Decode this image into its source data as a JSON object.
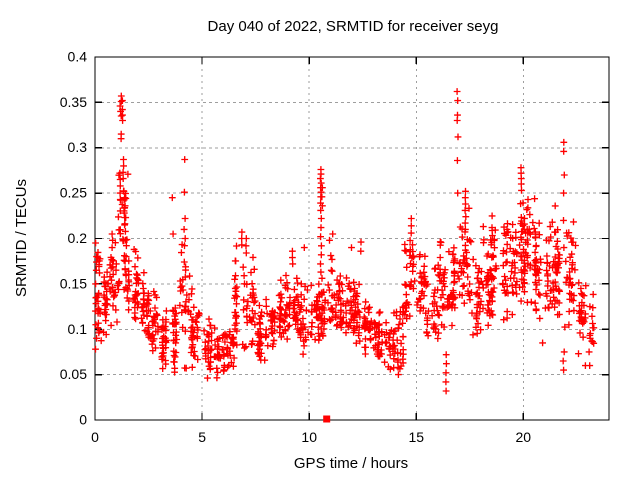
{
  "title": "Day 040 of 2022, SRMTID for receiver seyg",
  "x_axis": {
    "label": "GPS time / hours",
    "ticks": [
      "0",
      "5",
      "10",
      "15",
      "20"
    ],
    "tick_values": [
      0,
      5,
      10,
      15,
      20
    ]
  },
  "y_axis": {
    "label": "SRMTID / TECUs",
    "ticks": [
      "0",
      "0.05",
      "0.1",
      "0.15",
      "0.2",
      "0.25",
      "0.3",
      "0.35",
      "0.4"
    ],
    "tick_values": [
      0,
      0.05,
      0.1,
      0.15,
      0.2,
      0.25,
      0.3,
      0.35,
      0.4
    ]
  },
  "colors": {
    "marker": "#ff0000",
    "grid": "#9e9e9e",
    "axis": "#000000",
    "background": "#ffffff",
    "text": "#000000"
  },
  "chart_data": {
    "type": "scatter",
    "title": "Day 040 of 2022, SRMTID for receiver seyg",
    "xlabel": "GPS time / hours",
    "ylabel": "SRMTID / TECUs",
    "xlim": [
      0,
      24
    ],
    "ylim": [
      0,
      0.4
    ],
    "grid": true,
    "legend": "none",
    "marker": "plus",
    "marker_color": "#ff0000",
    "band_bins": [
      [
        0.0,
        0.3,
        0.075,
        0.2,
        24
      ],
      [
        0.3,
        0.7,
        0.09,
        0.18,
        26
      ],
      [
        0.7,
        1.0,
        0.1,
        0.21,
        28
      ],
      [
        1.0,
        1.5,
        0.13,
        0.29,
        44
      ],
      [
        1.5,
        2.0,
        0.1,
        0.22,
        36
      ],
      [
        2.0,
        2.5,
        0.085,
        0.165,
        32
      ],
      [
        2.5,
        3.0,
        0.07,
        0.15,
        30
      ],
      [
        3.0,
        3.5,
        0.055,
        0.125,
        30
      ],
      [
        3.5,
        4.0,
        0.05,
        0.15,
        30
      ],
      [
        4.0,
        4.5,
        0.05,
        0.21,
        34
      ],
      [
        4.5,
        5.0,
        0.055,
        0.15,
        30
      ],
      [
        5.0,
        5.5,
        0.045,
        0.12,
        30
      ],
      [
        5.5,
        6.0,
        0.045,
        0.105,
        28
      ],
      [
        6.0,
        6.5,
        0.05,
        0.12,
        28
      ],
      [
        6.5,
        7.0,
        0.07,
        0.2,
        30
      ],
      [
        7.0,
        7.5,
        0.075,
        0.185,
        30
      ],
      [
        7.5,
        8.0,
        0.06,
        0.135,
        30
      ],
      [
        8.0,
        8.5,
        0.07,
        0.145,
        30
      ],
      [
        8.5,
        9.0,
        0.08,
        0.17,
        32
      ],
      [
        9.0,
        9.5,
        0.08,
        0.175,
        30
      ],
      [
        9.5,
        10.0,
        0.07,
        0.16,
        30
      ],
      [
        10.0,
        10.5,
        0.08,
        0.17,
        32
      ],
      [
        10.5,
        11.0,
        0.085,
        0.17,
        30
      ],
      [
        11.0,
        11.5,
        0.09,
        0.19,
        32
      ],
      [
        11.5,
        12.0,
        0.08,
        0.17,
        34
      ],
      [
        12.0,
        12.5,
        0.08,
        0.165,
        34
      ],
      [
        12.5,
        13.0,
        0.07,
        0.145,
        30
      ],
      [
        13.0,
        13.5,
        0.065,
        0.135,
        30
      ],
      [
        13.5,
        14.0,
        0.055,
        0.12,
        28
      ],
      [
        14.0,
        14.5,
        0.05,
        0.135,
        28
      ],
      [
        14.5,
        15.0,
        0.1,
        0.22,
        36
      ],
      [
        15.0,
        15.5,
        0.1,
        0.2,
        32
      ],
      [
        15.5,
        16.0,
        0.08,
        0.18,
        30
      ],
      [
        16.0,
        16.5,
        0.1,
        0.215,
        34
      ],
      [
        16.5,
        17.0,
        0.1,
        0.2,
        30
      ],
      [
        17.0,
        17.5,
        0.11,
        0.245,
        36
      ],
      [
        17.5,
        18.0,
        0.085,
        0.185,
        30
      ],
      [
        18.0,
        18.5,
        0.09,
        0.22,
        34
      ],
      [
        18.5,
        19.0,
        0.1,
        0.24,
        36
      ],
      [
        19.0,
        19.5,
        0.1,
        0.225,
        34
      ],
      [
        19.5,
        20.0,
        0.12,
        0.27,
        40
      ],
      [
        20.0,
        20.5,
        0.12,
        0.26,
        40
      ],
      [
        20.5,
        21.0,
        0.11,
        0.25,
        36
      ],
      [
        21.0,
        21.5,
        0.1,
        0.24,
        34
      ],
      [
        21.5,
        22.0,
        0.09,
        0.25,
        30
      ],
      [
        22.0,
        22.5,
        0.1,
        0.235,
        34
      ],
      [
        22.5,
        23.0,
        0.07,
        0.175,
        28
      ],
      [
        23.0,
        23.3,
        0.05,
        0.15,
        12
      ]
    ],
    "spike_columns": [
      {
        "x": 0.05,
        "ys": [
          0.195,
          0.18,
          0.165,
          0.15,
          0.135,
          0.12,
          0.105,
          0.09,
          0.078
        ]
      },
      {
        "x": 0.8,
        "ys": [
          0.205,
          0.198,
          0.19
        ]
      },
      {
        "x": 1.2,
        "ys": [
          0.357,
          0.351,
          0.346,
          0.34,
          0.335
        ]
      },
      {
        "x": 1.28,
        "ys": [
          0.352,
          0.342,
          0.336,
          0.33
        ]
      },
      {
        "x": 1.24,
        "ys": [
          0.315,
          0.31
        ]
      },
      {
        "x": 1.18,
        "ys": [
          0.272,
          0.265,
          0.258,
          0.25,
          0.243
        ]
      },
      {
        "x": 1.32,
        "ys": [
          0.287,
          0.28,
          0.273,
          0.266
        ]
      },
      {
        "x": 1.38,
        "ys": [
          0.252,
          0.244,
          0.236,
          0.228
        ]
      },
      {
        "x": 3.62,
        "ys": [
          0.245,
          0.205
        ]
      },
      {
        "x": 4.18,
        "ys": [
          0.287,
          0.251,
          0.222,
          0.21,
          0.2
        ]
      },
      {
        "x": 6.85,
        "ys": [
          0.207,
          0.2,
          0.193
        ]
      },
      {
        "x": 7.05,
        "ys": [
          0.2,
          0.192,
          0.184
        ]
      },
      {
        "x": 9.2,
        "ys": [
          0.186,
          0.179,
          0.172
        ]
      },
      {
        "x": 9.75,
        "ys": [
          0.19
        ]
      },
      {
        "x": 10.55,
        "ys": [
          0.276,
          0.271,
          0.266,
          0.261,
          0.256,
          0.251,
          0.246,
          0.239,
          0.231,
          0.222,
          0.212,
          0.202,
          0.192,
          0.182,
          0.172,
          0.163
        ]
      },
      {
        "x": 10.62,
        "ys": [
          0.256,
          0.246,
          0.236
        ]
      },
      {
        "x": 11.95,
        "ys": [
          0.19
        ]
      },
      {
        "x": 12.4,
        "ys": [
          0.196,
          0.186
        ]
      },
      {
        "x": 14.15,
        "ys": [
          0.05,
          0.058,
          0.066,
          0.074
        ]
      },
      {
        "x": 14.75,
        "ys": [
          0.222,
          0.214,
          0.206
        ]
      },
      {
        "x": 16.4,
        "ys": [
          0.032,
          0.042,
          0.052,
          0.062,
          0.072
        ]
      },
      {
        "x": 16.93,
        "ys": [
          0.362,
          0.352,
          0.336,
          0.33,
          0.312,
          0.286,
          0.25
        ]
      },
      {
        "x": 17.3,
        "ys": [
          0.252,
          0.245,
          0.238,
          0.231,
          0.224,
          0.217,
          0.21
        ]
      },
      {
        "x": 19.9,
        "ys": [
          0.278,
          0.272,
          0.266,
          0.26,
          0.253
        ]
      },
      {
        "x": 21.9,
        "ys": [
          0.306,
          0.296,
          0.27,
          0.25,
          0.22,
          0.19
        ]
      },
      {
        "x": 21.88,
        "ys": [
          0.055,
          0.065,
          0.075
        ]
      },
      {
        "x": 23.1,
        "ys": [
          0.06,
          0.075,
          0.09
        ]
      }
    ],
    "extra_points": [
      [
        20.9,
        0.085
      ],
      [
        22.9,
        0.06
      ],
      [
        11.1,
        0.205
      ],
      [
        10.95,
        0.198
      ]
    ],
    "axis_marker": {
      "x": 10.82,
      "y": 0,
      "shape": "filled-square"
    }
  }
}
